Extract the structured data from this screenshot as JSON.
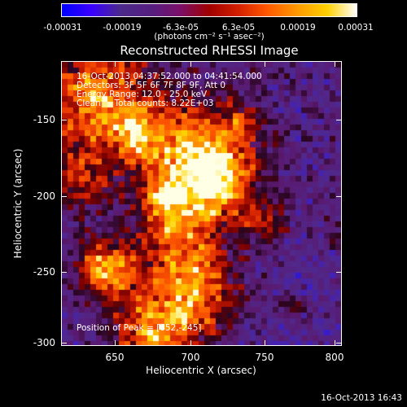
{
  "colorbar": {
    "ticks": [
      "-0.00031",
      "-0.00019",
      "-6.3e-05",
      "6.3e-05",
      "0.00019",
      "0.00031"
    ],
    "units": "(photons cm⁻² s⁻¹ asec⁻²)",
    "colors": [
      "#0000ff",
      "#3a00ff",
      "#4b2a8a",
      "#551f80",
      "#7a0f6a",
      "#a00000",
      "#d42000",
      "#ff5a00",
      "#ff9a00",
      "#ffd000",
      "#ffffff"
    ]
  },
  "plot": {
    "title": "Reconstructed RHESSI Image",
    "annotations": [
      "16-Oct-2013 04:37:52.000 to 04:41:54.000",
      "Detectors: 3F 5F 6F 7F 8F 9F, Att 0",
      "Energy Range: 12.0 - 25.0 keV",
      "Clean     Total counts: 8.22E+03"
    ],
    "peak": "Position of Peak = [652,-245]",
    "xlabel": "Heliocentric X (arcsec)",
    "ylabel": "Heliocentric Y (arcsec)",
    "xticks": [
      "650",
      "700",
      "750",
      "800"
    ],
    "yticks": [
      "-150",
      "-200",
      "-250",
      "-300"
    ]
  },
  "chart_data": {
    "type": "heatmap",
    "title": "Reconstructed RHESSI Image",
    "xlabel": "Heliocentric X (arcsec)",
    "ylabel": "Heliocentric Y (arcsec)",
    "xlim": [
      615,
      804
    ],
    "ylim": [
      -303,
      -115
    ],
    "colorbar_range": [
      -0.00031,
      0.00031
    ],
    "peak_position": [
      652,
      -245
    ]
  },
  "footer": {
    "timestamp": "16-Oct-2013 16:43"
  }
}
